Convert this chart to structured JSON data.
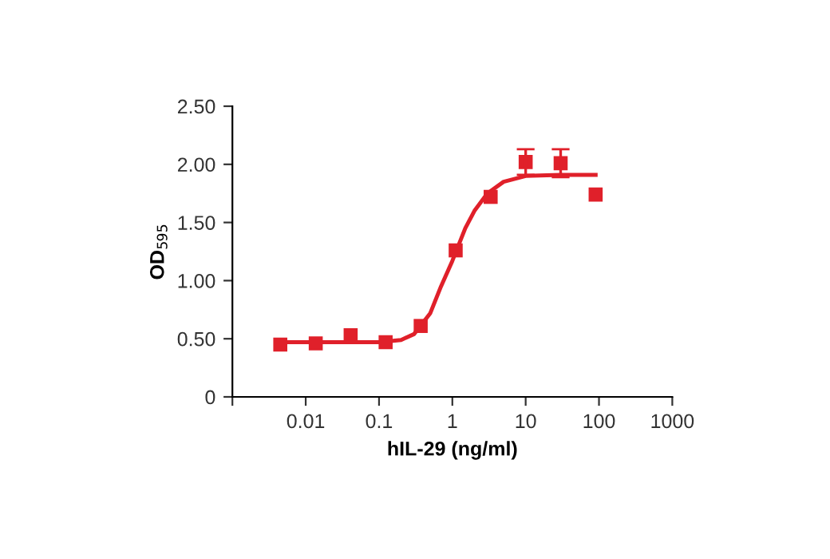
{
  "chart_data": {
    "type": "scatter",
    "xlabel": "hIL-29 (ng/ml)",
    "ylabel": "OD$_{595}$",
    "log": "x",
    "xlim": [
      0.001,
      1000
    ],
    "xticks": [
      {
        "value": 0.001,
        "label": null
      },
      0.01,
      0.1,
      1,
      10,
      100,
      1000
    ],
    "ylim": [
      0,
      2.5
    ],
    "yticks": [
      0,
      {
        "value": 0.5,
        "label": "0.50"
      },
      {
        "value": 1,
        "label": "1.00"
      },
      {
        "value": 1.5,
        "label": "1.50"
      },
      {
        "value": 2,
        "label": "2.00"
      },
      {
        "value": 2.5,
        "label": "2.50"
      }
    ],
    "grid": false,
    "legend": false,
    "series": [
      {
        "color": "#e0202a",
        "marker": "square",
        "x": [
          0.0045,
          0.0137,
          0.041,
          0.123,
          0.37,
          1.11,
          3.33,
          10,
          30,
          90
        ],
        "values": [
          0.45,
          0.46,
          0.53,
          0.47,
          0.61,
          1.26,
          1.72,
          2.02,
          2.01,
          1.74
        ],
        "errors": [
          null,
          null,
          null,
          null,
          null,
          null,
          null,
          0.11,
          0.12,
          null
        ]
      },
      {
        "type": "line",
        "color": "#e0202a",
        "marker": "none",
        "line_style": "solid",
        "x": [
          0.0045,
          0.1,
          0.2,
          0.3,
          0.5,
          0.7,
          1,
          1.5,
          2,
          3,
          5,
          10,
          30,
          90
        ],
        "values": [
          0.47,
          0.47,
          0.49,
          0.54,
          0.72,
          0.95,
          1.17,
          1.45,
          1.6,
          1.75,
          1.85,
          1.9,
          1.91,
          1.91
        ]
      }
    ]
  }
}
